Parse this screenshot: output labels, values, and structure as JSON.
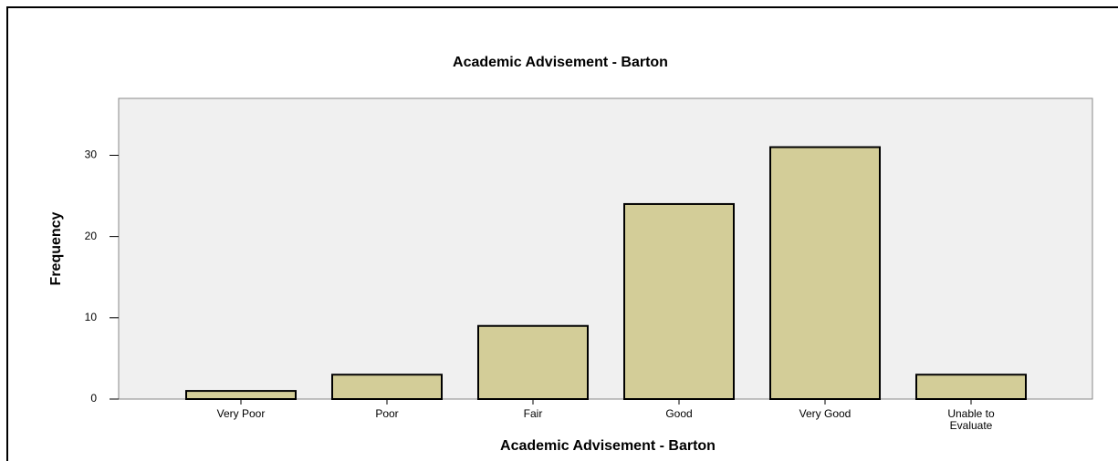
{
  "chart_data": {
    "type": "bar",
    "title": "Academic Advisement - Barton",
    "x_label": "Academic Advisement - Barton",
    "y_label": "Frequency",
    "categories": [
      "Very Poor",
      "Poor",
      "Fair",
      "Good",
      "Very Good",
      "Unable to Evaluate"
    ],
    "values": [
      1,
      3,
      9,
      24,
      31,
      3
    ],
    "color": "#d3cd98",
    "ylim": [
      0,
      37
    ],
    "yticks": [
      0,
      10,
      20,
      30
    ],
    "grid": false
  }
}
